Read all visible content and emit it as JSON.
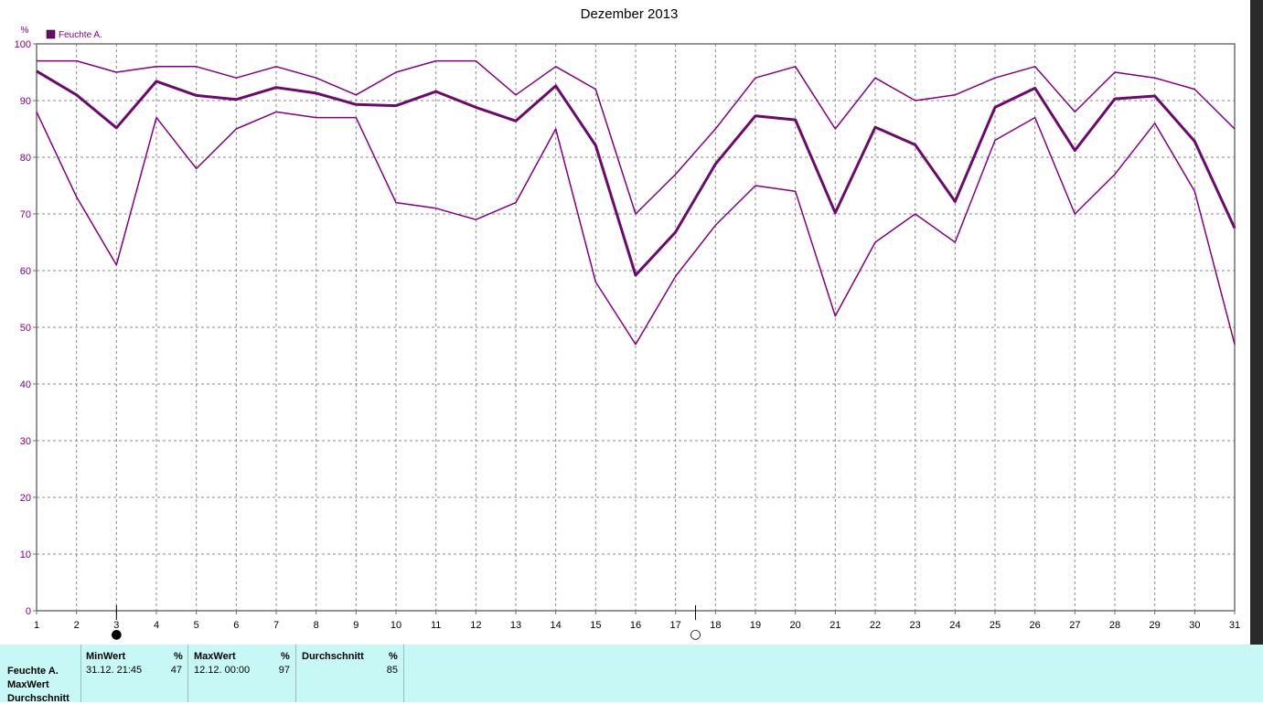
{
  "chart_data": {
    "type": "line",
    "title": "Dezember 2013",
    "ylabel": "%",
    "ylim": [
      0,
      100
    ],
    "yticks": [
      0,
      10,
      20,
      30,
      40,
      50,
      60,
      70,
      80,
      90,
      100
    ],
    "x": [
      1,
      2,
      3,
      4,
      5,
      6,
      7,
      8,
      9,
      10,
      11,
      12,
      13,
      14,
      15,
      16,
      17,
      18,
      19,
      20,
      21,
      22,
      23,
      24,
      25,
      26,
      27,
      28,
      29,
      30,
      31
    ],
    "xlim": [
      1,
      31
    ],
    "grid": true,
    "legend": [
      {
        "label": "Feuchte A.",
        "color": "#6c0a6c"
      }
    ],
    "series": [
      {
        "key": "max",
        "values": [
          97,
          97,
          95,
          96,
          96,
          94,
          96,
          94,
          91,
          95,
          97,
          97,
          91,
          96,
          92,
          70,
          77,
          85,
          94,
          96,
          85,
          94,
          90,
          91,
          94,
          96,
          88,
          95,
          94,
          92,
          85
        ],
        "color": "#800080",
        "width": 1.5
      },
      {
        "key": "avg",
        "values": [
          95.2,
          91,
          85.2,
          93.4,
          90.9,
          90.2,
          92.3,
          91.3,
          89.3,
          89.1,
          91.6,
          88.8,
          86.4,
          92.6,
          82.1,
          59.2,
          66.8,
          78.8,
          87.3,
          86.6,
          70.2,
          85.3,
          82.2,
          72.2,
          88.8,
          92.2,
          81.2,
          90.3,
          90.8,
          82.8,
          67.5
        ],
        "color": "#6c0a6c",
        "width": 3
      },
      {
        "key": "min",
        "values": [
          88,
          73,
          61,
          87,
          78,
          85,
          88,
          87,
          87,
          72,
          71,
          69,
          72,
          85,
          58,
          47,
          59,
          68,
          75,
          74,
          52,
          65,
          70,
          65,
          83,
          87,
          70,
          77,
          86,
          74,
          47
        ],
        "color": "#800080",
        "width": 1.5
      }
    ],
    "moon_phases": [
      {
        "day": 3,
        "symbol": "●"
      },
      {
        "day": 17.5,
        "symbol": "○"
      }
    ]
  },
  "summary_table": {
    "row_labels": [
      "Feuchte A.",
      "MaxWert",
      "Durchschnitt"
    ],
    "columns": [
      {
        "header": "MinWert",
        "unit": "%",
        "time": "31.12.  21:45",
        "value": "47"
      },
      {
        "header": "MaxWert",
        "unit": "%",
        "time": "12.12.  00:00",
        "value": "97"
      },
      {
        "header": "Durchschnitt",
        "unit": "%",
        "time": "",
        "value": "85"
      }
    ]
  },
  "colors": {
    "text": "#800080",
    "line": "#800080",
    "grid": "#888888",
    "axis": "#707070",
    "panel_bg": "#c8f8f6"
  }
}
